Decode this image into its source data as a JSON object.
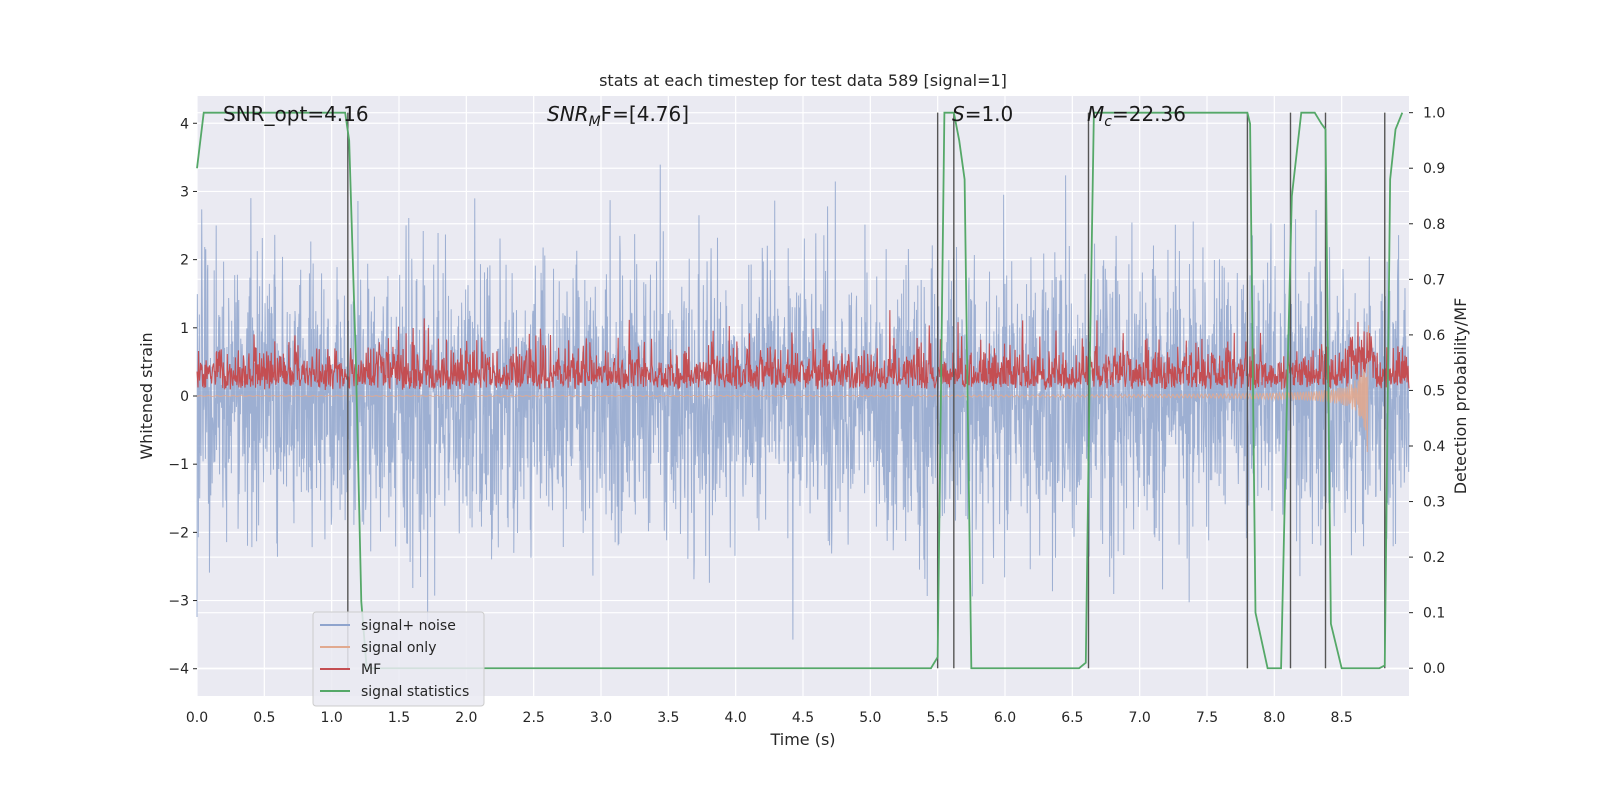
{
  "chart_data": {
    "type": "line",
    "title": "stats at each timestep for test data 589 [signal=1]",
    "xlabel": "Time (s)",
    "ylabel": "Whitened strain",
    "y2label": "Detection probability/MF",
    "xlim": [
      0,
      9.0
    ],
    "ylim": [
      -4.4,
      4.4
    ],
    "y2lim": [
      -0.05,
      1.03
    ],
    "xticks": [
      "0.0",
      "0.5",
      "1.0",
      "1.5",
      "2.0",
      "2.5",
      "3.0",
      "3.5",
      "4.0",
      "4.5",
      "5.0",
      "5.5",
      "6.0",
      "6.5",
      "7.0",
      "7.5",
      "8.0",
      "8.5"
    ],
    "yticks": [
      4,
      3,
      2,
      1,
      0,
      -1,
      -2,
      -3,
      -4
    ],
    "ytick_labels": [
      "4",
      "3",
      "2",
      "1",
      "0",
      "−1",
      "−2",
      "−3",
      "−4"
    ],
    "y2ticks": [
      "1.0",
      "0.9",
      "0.8",
      "0.7",
      "0.6",
      "0.5",
      "0.4",
      "0.3",
      "0.2",
      "0.1",
      "0.0"
    ],
    "grid": true,
    "legend_position": "lower-left",
    "annotations": {
      "snr_opt": "SNR_opt=4.16",
      "snr_mf_prefix": "SNR",
      "snr_mf_sub": "M",
      "snr_mf_suffix": "F=[4.76]",
      "s_prefix": "S",
      "s_suffix": "=1.0",
      "mc_prefix": "M",
      "mc_sub": "c",
      "mc_suffix": "=22.36"
    },
    "series": [
      {
        "name": "signal+ noise",
        "color": "#8fa4cd",
        "description_range": [
          -4.0,
          4.0
        ]
      },
      {
        "name": "signal only",
        "color": "#e1a98f"
      },
      {
        "name": "MF",
        "color": "#c44e52"
      },
      {
        "name": "signal statistics",
        "color": "#55a868",
        "x": [
          0.0,
          0.05,
          0.1,
          0.2,
          0.3,
          0.4,
          0.5,
          0.6,
          0.7,
          0.8,
          0.9,
          1.0,
          1.05,
          1.1,
          1.13,
          1.18,
          1.22,
          1.26,
          1.35,
          1.5,
          2.0,
          2.5,
          3.0,
          3.5,
          4.0,
          4.5,
          5.0,
          5.3,
          5.45,
          5.5,
          5.55,
          5.6,
          5.62,
          5.66,
          5.7,
          5.75,
          5.8,
          6.0,
          6.3,
          6.55,
          6.6,
          6.63,
          6.66,
          6.7,
          6.8,
          7.0,
          7.3,
          7.6,
          7.8,
          7.82,
          7.86,
          7.95,
          8.05,
          8.1,
          8.13,
          8.2,
          8.3,
          8.35,
          8.38,
          8.42,
          8.5,
          8.6,
          8.7,
          8.78,
          8.82,
          8.86,
          8.9,
          8.95
        ],
        "values": [
          0.9,
          1.0,
          1.0,
          1.0,
          1.0,
          1.0,
          1.0,
          1.0,
          1.0,
          1.0,
          1.0,
          1.0,
          1.0,
          1.0,
          0.95,
          0.55,
          0.12,
          0.0,
          0.0,
          0.0,
          0.0,
          0.0,
          0.0,
          0.0,
          0.0,
          0.0,
          0.0,
          0.0,
          0.0,
          0.02,
          1.0,
          1.0,
          1.0,
          0.95,
          0.88,
          0.0,
          0.0,
          0.0,
          0.0,
          0.0,
          0.01,
          0.55,
          1.0,
          1.0,
          1.0,
          1.0,
          1.0,
          1.0,
          1.0,
          0.98,
          0.1,
          0.0,
          0.0,
          0.55,
          0.85,
          1.0,
          1.0,
          0.98,
          0.97,
          0.08,
          0.0,
          0.0,
          0.0,
          0.0,
          0.005,
          0.88,
          0.97,
          1.0
        ]
      },
      {
        "name": "detection markers",
        "color": "#555555",
        "x": [
          1.12,
          5.5,
          5.62,
          6.62,
          7.8,
          8.12,
          8.38,
          8.82
        ]
      }
    ]
  },
  "legend": {
    "items": [
      {
        "label": "signal+ noise",
        "color": "#8fa4cd"
      },
      {
        "label": "signal only",
        "color": "#e1a98f"
      },
      {
        "label": "MF",
        "color": "#c44e52"
      },
      {
        "label": "signal statistics",
        "color": "#55a868"
      }
    ]
  }
}
